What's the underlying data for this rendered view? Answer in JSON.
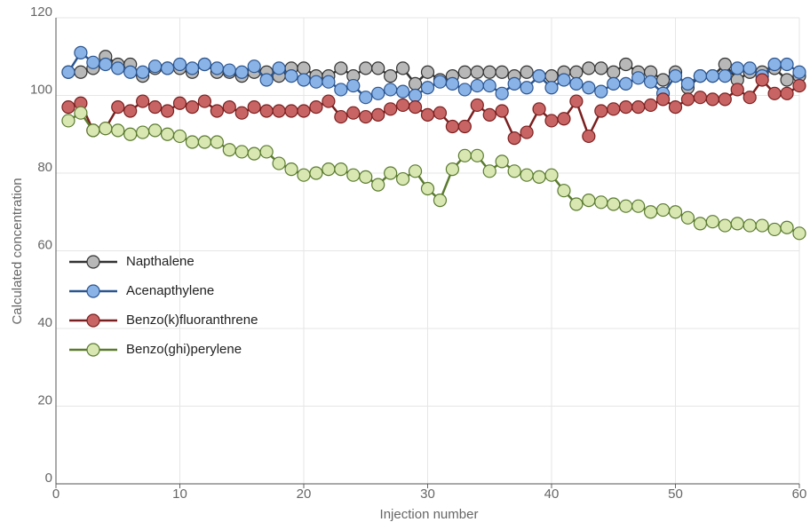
{
  "chart_data": {
    "type": "line",
    "x_label": "Injection number",
    "y_label": "Calculated concentration",
    "x": [
      1,
      2,
      3,
      4,
      5,
      6,
      7,
      8,
      9,
      10,
      11,
      12,
      13,
      14,
      15,
      16,
      17,
      18,
      19,
      20,
      21,
      22,
      23,
      24,
      25,
      26,
      27,
      28,
      29,
      30,
      31,
      32,
      33,
      34,
      35,
      36,
      37,
      38,
      39,
      40,
      41,
      42,
      43,
      44,
      45,
      46,
      47,
      48,
      49,
      50,
      51,
      52,
      53,
      54,
      55,
      56,
      57,
      58,
      59,
      60
    ],
    "series": [
      {
        "name": "Napthalene",
        "color": "#333333",
        "marker_color": "#b8b8b8",
        "values": [
          106,
          106,
          107,
          110,
          108,
          108,
          105,
          107,
          107,
          107,
          106,
          108,
          106,
          106,
          105,
          106,
          106,
          105,
          107,
          107,
          105,
          105,
          107,
          105,
          107,
          107,
          105,
          107,
          103,
          106,
          104,
          105,
          106,
          106,
          106,
          106,
          105,
          106,
          105,
          105,
          106,
          106,
          107,
          107,
          106,
          108,
          106,
          106,
          104,
          106,
          102,
          105,
          105,
          108,
          104,
          106,
          106,
          107,
          104,
          105
        ]
      },
      {
        "name": "Acenapthylene",
        "color": "#2b5590",
        "marker_color": "#8ab4e8",
        "values": [
          106,
          111,
          108.5,
          108,
          107,
          106,
          106,
          107.5,
          107,
          108,
          107,
          108,
          107,
          106.5,
          106,
          107.5,
          104,
          107,
          105,
          104,
          103.5,
          103.5,
          101.5,
          102.5,
          99.5,
          100.5,
          101.5,
          101,
          100,
          102,
          103.5,
          103,
          101.5,
          102.5,
          102.5,
          100.5,
          103,
          102,
          105,
          102,
          104,
          103,
          102,
          101,
          103,
          103,
          104.5,
          103.5,
          100.5,
          105,
          103,
          105,
          105,
          105,
          107,
          107,
          105,
          108,
          108,
          106
        ]
      },
      {
        "name": "Benzo(k)fluoranthrene",
        "color": "#7a1f1f",
        "marker_color": "#c86464",
        "values": [
          97,
          98,
          91,
          91.5,
          97,
          96,
          98.5,
          97,
          96,
          98,
          97,
          98.5,
          96,
          97,
          95.5,
          97,
          96,
          96,
          96,
          96,
          97,
          98.5,
          94.5,
          95.5,
          94.5,
          95,
          96.5,
          97.5,
          97,
          95,
          95.5,
          92,
          92,
          97.5,
          95,
          96,
          89,
          90.5,
          96.5,
          93.5,
          94,
          98.5,
          89.5,
          96,
          96.5,
          97,
          97,
          97.5,
          99,
          97,
          99,
          99.5,
          99,
          99,
          101.5,
          99.5,
          104,
          100.5,
          100.5,
          102.5
        ]
      },
      {
        "name": "Benzo(ghi)perylene",
        "color": "#5a7a2e",
        "marker_color": "#d9e8b3",
        "values": [
          93.5,
          95.5,
          91,
          91.5,
          91,
          90,
          90.5,
          91,
          90,
          89.5,
          88,
          88,
          88,
          86,
          85.5,
          85,
          85.5,
          82.5,
          81,
          79.5,
          80,
          81,
          81,
          79.5,
          79,
          77,
          80,
          78.5,
          80.5,
          76,
          73,
          81,
          84.5,
          84.5,
          80.5,
          83,
          80.5,
          79.5,
          79,
          79.5,
          75.5,
          72,
          73,
          72.5,
          72,
          71.5,
          71.5,
          70,
          70.5,
          70,
          68.5,
          67,
          67.5,
          66.5,
          67,
          66.5,
          66.5,
          65.5,
          66,
          64.5
        ]
      }
    ],
    "xlim": [
      0,
      60
    ],
    "xticks": [
      0,
      10,
      20,
      30,
      40,
      50,
      60
    ],
    "ylim": [
      0,
      120
    ],
    "yticks": [
      0,
      20,
      40,
      60,
      80,
      100,
      120
    ],
    "grid": true,
    "legend": "left"
  }
}
